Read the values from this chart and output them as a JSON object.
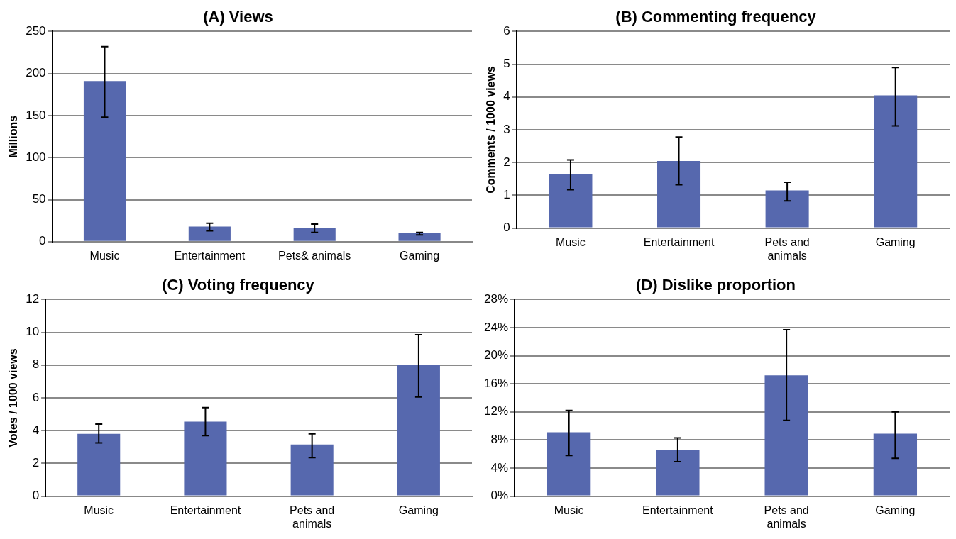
{
  "chart_data": [
    {
      "type": "bar",
      "title": "(A) Views",
      "ylabel": "Millions",
      "categories": [
        "Music",
        "Entertainment",
        "Pets& animals",
        "Gaming"
      ],
      "series": [
        {
          "color": "#5668ae",
          "values": [
            191,
            18,
            16,
            10
          ],
          "errors": [
            [
              148,
              232
            ],
            [
              13,
              22
            ],
            [
              11,
              21
            ],
            [
              8,
              11
            ]
          ]
        }
      ],
      "ylim": [
        0,
        250
      ],
      "yticks": [
        0,
        50,
        100,
        150,
        200,
        250
      ],
      "grid": "y",
      "legend": false
    },
    {
      "type": "bar",
      "title": "(B) Commenting frequency",
      "ylabel": "Comments / 1000 views",
      "categories": [
        "Music",
        "Entertainment",
        "Pets and animals",
        "Gaming"
      ],
      "series": [
        {
          "color": "#5668ae",
          "values": [
            1.65,
            2.05,
            1.15,
            4.05
          ],
          "errors": [
            [
              1.17,
              2.08
            ],
            [
              1.32,
              2.78
            ],
            [
              0.83,
              1.4
            ],
            [
              3.12,
              4.9
            ]
          ]
        }
      ],
      "ylim": [
        0,
        6
      ],
      "yticks": [
        0,
        1,
        2,
        3,
        4,
        5,
        6
      ],
      "grid": "y",
      "legend": false
    },
    {
      "type": "bar",
      "title": "(C) Voting frequency",
      "ylabel": "Votes / 1000 views",
      "categories": [
        "Music",
        "Entertainment",
        "Pets and animals",
        "Gaming"
      ],
      "series": [
        {
          "color": "#5668ae",
          "values": [
            3.8,
            4.55,
            3.15,
            8.0
          ],
          "errors": [
            [
              3.25,
              4.4
            ],
            [
              3.7,
              5.4
            ],
            [
              2.35,
              3.8
            ],
            [
              6.05,
              9.85
            ]
          ]
        }
      ],
      "ylim": [
        0,
        12
      ],
      "yticks": [
        0,
        2,
        4,
        6,
        8,
        10,
        12
      ],
      "grid": "y",
      "legend": false
    },
    {
      "type": "bar",
      "title": "(D) Dislike proportion",
      "categories": [
        "Music",
        "Entertainment",
        "Pets and animals",
        "Gaming"
      ],
      "series": [
        {
          "color": "#5668ae",
          "values": [
            9.1,
            6.6,
            17.2,
            8.9
          ],
          "errors": [
            [
              5.8,
              12.2
            ],
            [
              4.9,
              8.3
            ],
            [
              10.8,
              23.7
            ],
            [
              5.4,
              12.0
            ]
          ]
        }
      ],
      "ylim": [
        0,
        28
      ],
      "yticks": [
        {
          "value": 0,
          "label": "0%"
        },
        {
          "value": 4,
          "label": "4%"
        },
        {
          "value": 8,
          "label": "8%"
        },
        {
          "value": 12,
          "label": "12%"
        },
        {
          "value": 16,
          "label": "16%"
        },
        {
          "value": 20,
          "label": "20%"
        },
        {
          "value": 24,
          "label": "24%"
        },
        {
          "value": 28,
          "label": "28%"
        }
      ],
      "grid": "y",
      "legend": false
    }
  ]
}
